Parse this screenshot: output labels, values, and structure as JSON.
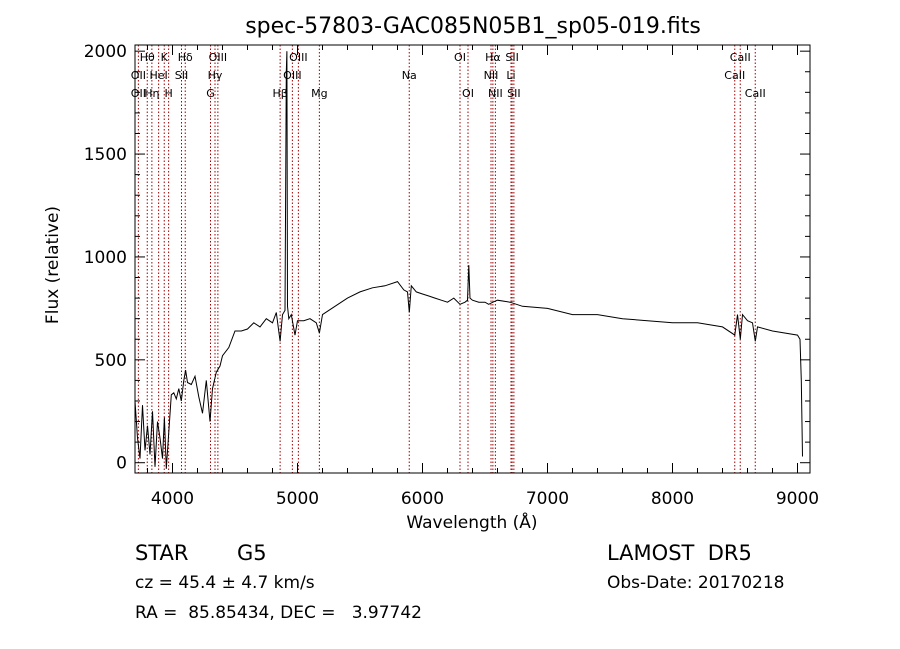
{
  "chart_data": {
    "type": "line",
    "title": "spec-57803-GAC085N05B1_sp05-019.fits",
    "xlabel": "Wavelength (Å)",
    "ylabel": "Flux (relative)",
    "xlim": [
      3700,
      9100
    ],
    "ylim": [
      -50,
      2030
    ],
    "x_ticks": [
      4000,
      5000,
      6000,
      7000,
      8000,
      9000
    ],
    "y_ticks": [
      0,
      500,
      1000,
      1500,
      2000
    ],
    "grid": false,
    "line_color": "#000000",
    "marker_color": "#a00000",
    "lines": [
      {
        "name": "Hθ",
        "x": 3798,
        "row": 0
      },
      {
        "name": "OII",
        "x": 3727,
        "row": 1
      },
      {
        "name": "OII",
        "x": 3727,
        "row": 2
      },
      {
        "name": "K",
        "x": 3934,
        "row": 0
      },
      {
        "name": "HeI",
        "x": 3889,
        "row": 1
      },
      {
        "name": "Hη",
        "x": 3835,
        "row": 2
      },
      {
        "name": "H",
        "x": 3969,
        "row": 2
      },
      {
        "name": "Hδ",
        "x": 4102,
        "row": 0
      },
      {
        "name": "SII",
        "x": 4072,
        "row": 1
      },
      {
        "name": "OIII",
        "x": 4363,
        "row": 0
      },
      {
        "name": "Hγ",
        "x": 4340,
        "row": 1
      },
      {
        "name": "G",
        "x": 4304,
        "row": 2
      },
      {
        "name": "Hβ",
        "x": 4861,
        "row": 2
      },
      {
        "name": "OIII",
        "x": 5007,
        "row": 0
      },
      {
        "name": "OIII",
        "x": 4959,
        "row": 1
      },
      {
        "name": "Mg",
        "x": 5175,
        "row": 2
      },
      {
        "name": "Na",
        "x": 5894,
        "row": 1
      },
      {
        "name": "OI",
        "x": 6300,
        "row": 0
      },
      {
        "name": "OI",
        "x": 6364,
        "row": 2
      },
      {
        "name": "Hα",
        "x": 6563,
        "row": 0
      },
      {
        "name": "SII",
        "x": 6717,
        "row": 0
      },
      {
        "name": "NII",
        "x": 6548,
        "row": 1
      },
      {
        "name": "Li",
        "x": 6708,
        "row": 1
      },
      {
        "name": "NII",
        "x": 6583,
        "row": 2
      },
      {
        "name": "SII",
        "x": 6731,
        "row": 2
      },
      {
        "name": "CaII",
        "x": 8542,
        "row": 0
      },
      {
        "name": "CaII",
        "x": 8498,
        "row": 1
      },
      {
        "name": "CaII",
        "x": 8662,
        "row": 2
      }
    ],
    "spectrum": {
      "x": [
        3700,
        3720,
        3740,
        3760,
        3780,
        3800,
        3820,
        3840,
        3860,
        3880,
        3900,
        3920,
        3935,
        3950,
        3970,
        3990,
        4010,
        4030,
        4050,
        4070,
        4090,
        4105,
        4120,
        4150,
        4180,
        4210,
        4240,
        4270,
        4300,
        4320,
        4350,
        4380,
        4400,
        4450,
        4500,
        4550,
        4600,
        4650,
        4700,
        4750,
        4800,
        4830,
        4861,
        4880,
        4900,
        4910,
        4915,
        4920,
        4930,
        4950,
        4980,
        5000,
        5050,
        5100,
        5150,
        5175,
        5200,
        5300,
        5400,
        5500,
        5600,
        5700,
        5800,
        5850,
        5880,
        5894,
        5910,
        5950,
        6000,
        6050,
        6100,
        6150,
        6200,
        6250,
        6300,
        6340,
        6360,
        6370,
        6380,
        6400,
        6450,
        6500,
        6530,
        6563,
        6600,
        6700,
        6800,
        7000,
        7200,
        7400,
        7600,
        7800,
        8000,
        8200,
        8400,
        8498,
        8520,
        8542,
        8560,
        8600,
        8640,
        8662,
        8680,
        8800,
        9000,
        9020,
        9030,
        9040
      ],
      "y": [
        300,
        120,
        20,
        280,
        60,
        180,
        40,
        250,
        -20,
        200,
        120,
        20,
        220,
        -30,
        150,
        330,
        340,
        310,
        360,
        300,
        400,
        450,
        390,
        380,
        420,
        320,
        240,
        400,
        200,
        360,
        440,
        470,
        520,
        560,
        640,
        640,
        650,
        680,
        660,
        700,
        680,
        730,
        590,
        720,
        740,
        1900,
        2000,
        760,
        700,
        720,
        620,
        690,
        690,
        700,
        680,
        630,
        720,
        760,
        800,
        830,
        850,
        860,
        880,
        840,
        830,
        730,
        860,
        830,
        820,
        810,
        800,
        790,
        780,
        800,
        770,
        780,
        790,
        960,
        800,
        790,
        780,
        780,
        770,
        780,
        790,
        780,
        760,
        750,
        720,
        720,
        700,
        690,
        680,
        680,
        660,
        620,
        720,
        600,
        720,
        690,
        680,
        590,
        660,
        640,
        620,
        600,
        400,
        30
      ]
    }
  },
  "info": {
    "object_class": "STAR",
    "subclass": "G5",
    "survey": "LAMOST  DR5",
    "redshift": "cz = 45.4 ± 4.7 km/s",
    "obs_date": "Obs-Date: 20170218",
    "coordinates": "RA =  85.85434, DEC =   3.97742"
  }
}
